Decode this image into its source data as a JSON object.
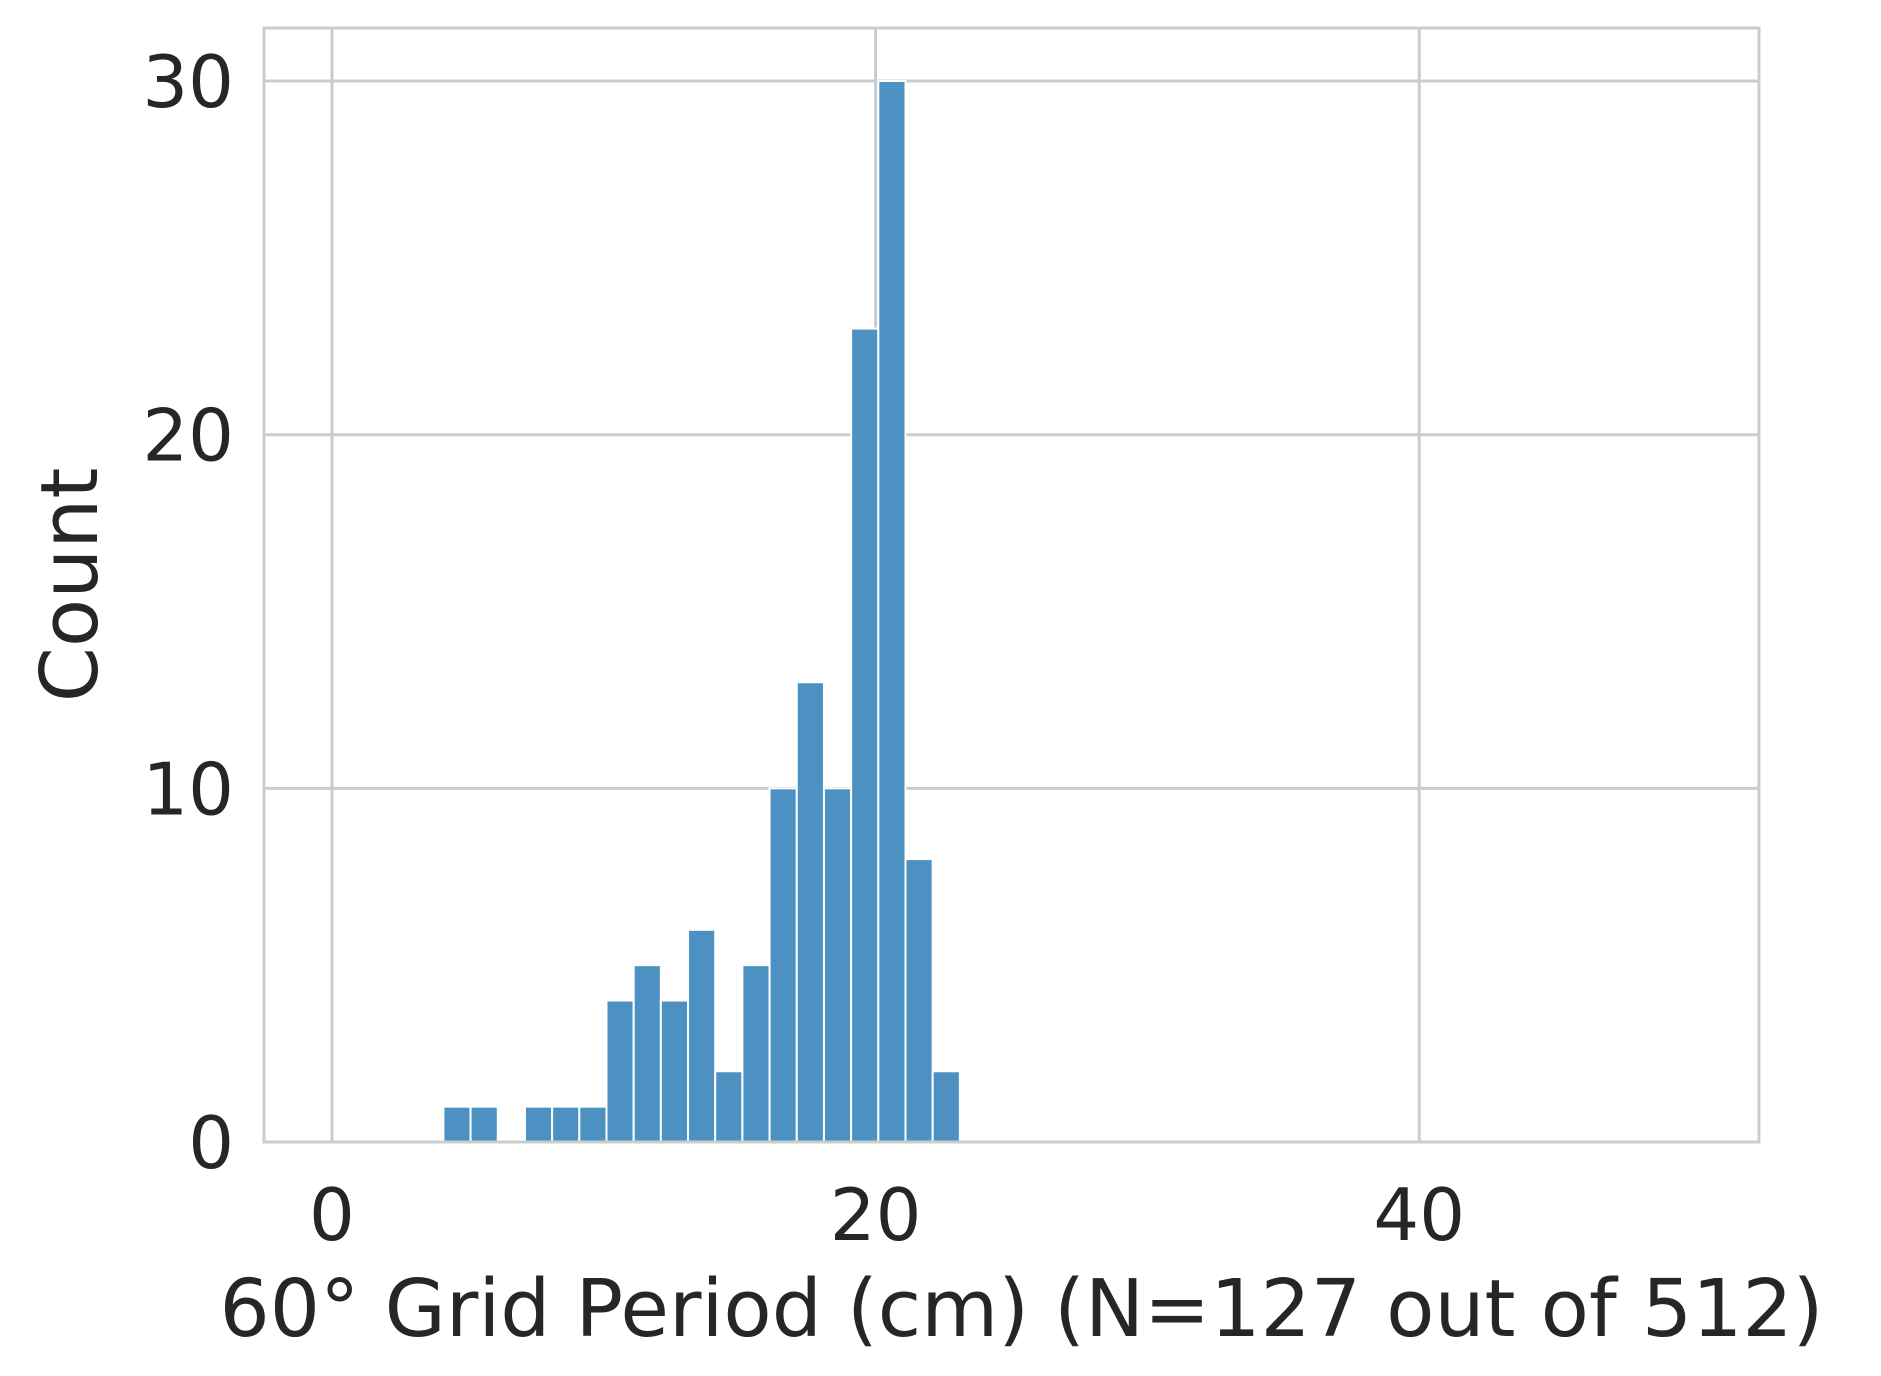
{
  "chart_data": {
    "type": "bar",
    "title": "",
    "xlabel": "60° Grid Period (cm) (N=127 out of 512)",
    "ylabel": "Count",
    "xlim": [
      -2.5,
      52.5
    ],
    "ylim": [
      0,
      31.5
    ],
    "xticks": [
      0,
      20,
      40
    ],
    "yticks": [
      0,
      10,
      20,
      30
    ],
    "grid": true,
    "bar_color": "#4c91c2",
    "grid_color": "#cccccc",
    "text_color": "#262626",
    "bin_width": 1.0,
    "bins": [
      {
        "x": 4.1,
        "value": 1
      },
      {
        "x": 5.1,
        "value": 1
      },
      {
        "x": 7.1,
        "value": 1
      },
      {
        "x": 8.1,
        "value": 1
      },
      {
        "x": 9.1,
        "value": 1
      },
      {
        "x": 10.1,
        "value": 4
      },
      {
        "x": 11.1,
        "value": 5
      },
      {
        "x": 12.1,
        "value": 4
      },
      {
        "x": 13.1,
        "value": 6
      },
      {
        "x": 14.1,
        "value": 2
      },
      {
        "x": 15.1,
        "value": 5
      },
      {
        "x": 16.1,
        "value": 10
      },
      {
        "x": 17.1,
        "value": 13
      },
      {
        "x": 18.1,
        "value": 10
      },
      {
        "x": 19.1,
        "value": 23
      },
      {
        "x": 20.1,
        "value": 30
      },
      {
        "x": 21.1,
        "value": 8
      },
      {
        "x": 22.1,
        "value": 2
      }
    ]
  }
}
